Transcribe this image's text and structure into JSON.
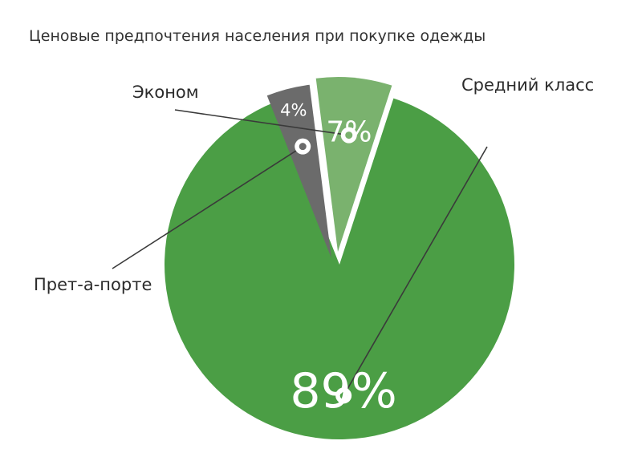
{
  "chart_data": {
    "type": "pie",
    "title": "Ценовые предпочтения населения при покупке одежды",
    "slices": [
      {
        "label": "Средний класс",
        "value": 89,
        "value_label": "89%",
        "color": "#4b9e45"
      },
      {
        "label": "Прет-а-порте",
        "value": 4,
        "value_label": "4%",
        "color": "#6b6b6b"
      },
      {
        "label": "Эконом",
        "value": 7,
        "value_label": "7%",
        "color": "#7ab26e"
      }
    ],
    "legend": "callouts"
  }
}
